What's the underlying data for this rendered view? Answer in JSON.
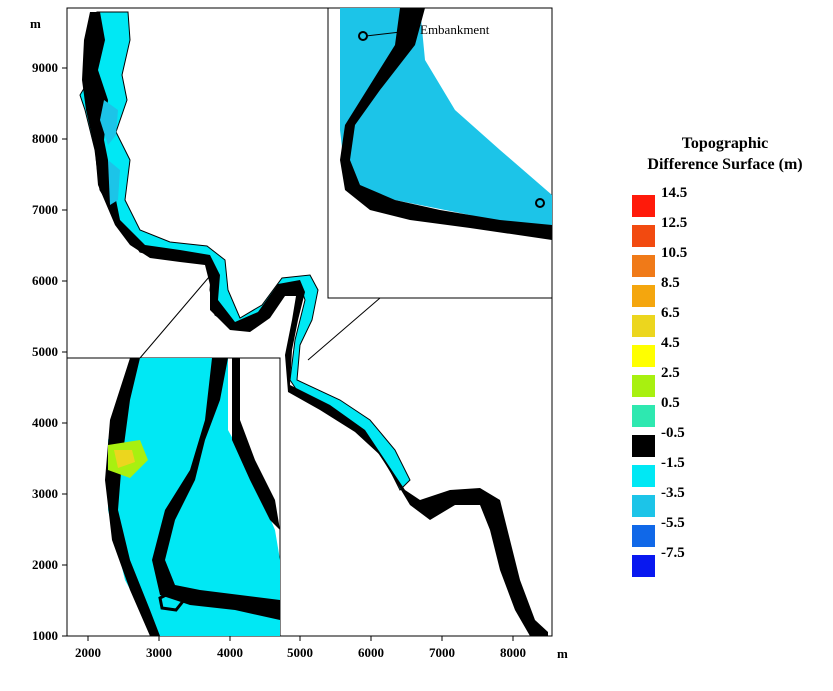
{
  "map": {
    "y_unit": "m",
    "x_unit": "m",
    "y_ticks": [
      "9000",
      "8000",
      "7000",
      "6000",
      "5000",
      "4000",
      "3000",
      "2000",
      "1000"
    ],
    "x_ticks": [
      "2000",
      "3000",
      "4000",
      "5000",
      "6000",
      "7000",
      "8000"
    ],
    "annotation": "Embankment"
  },
  "legend": {
    "title_line1": "Topographic",
    "title_line2": "Difference Surface (m)",
    "items": [
      {
        "label": "14.5",
        "color": "#ff1a0a"
      },
      {
        "label": "12.5",
        "color": "#f24a10"
      },
      {
        "label": "10.5",
        "color": "#f07a18"
      },
      {
        "label": "8.5",
        "color": "#f4a60e"
      },
      {
        "label": "6.5",
        "color": "#ecd61e"
      },
      {
        "label": "4.5",
        "color": "#ffff00"
      },
      {
        "label": "2.5",
        "color": "#a8f010"
      },
      {
        "label": "0.5",
        "color": "#2ee8b0"
      },
      {
        "label": "-0.5",
        "color": "#000000"
      },
      {
        "label": "-1.5",
        "color": "#00e8f4"
      },
      {
        "label": "-3.5",
        "color": "#1cc4e8"
      },
      {
        "label": "-5.5",
        "color": "#1068e8"
      },
      {
        "label": "-7.5",
        "color": "#0818f0"
      }
    ]
  }
}
